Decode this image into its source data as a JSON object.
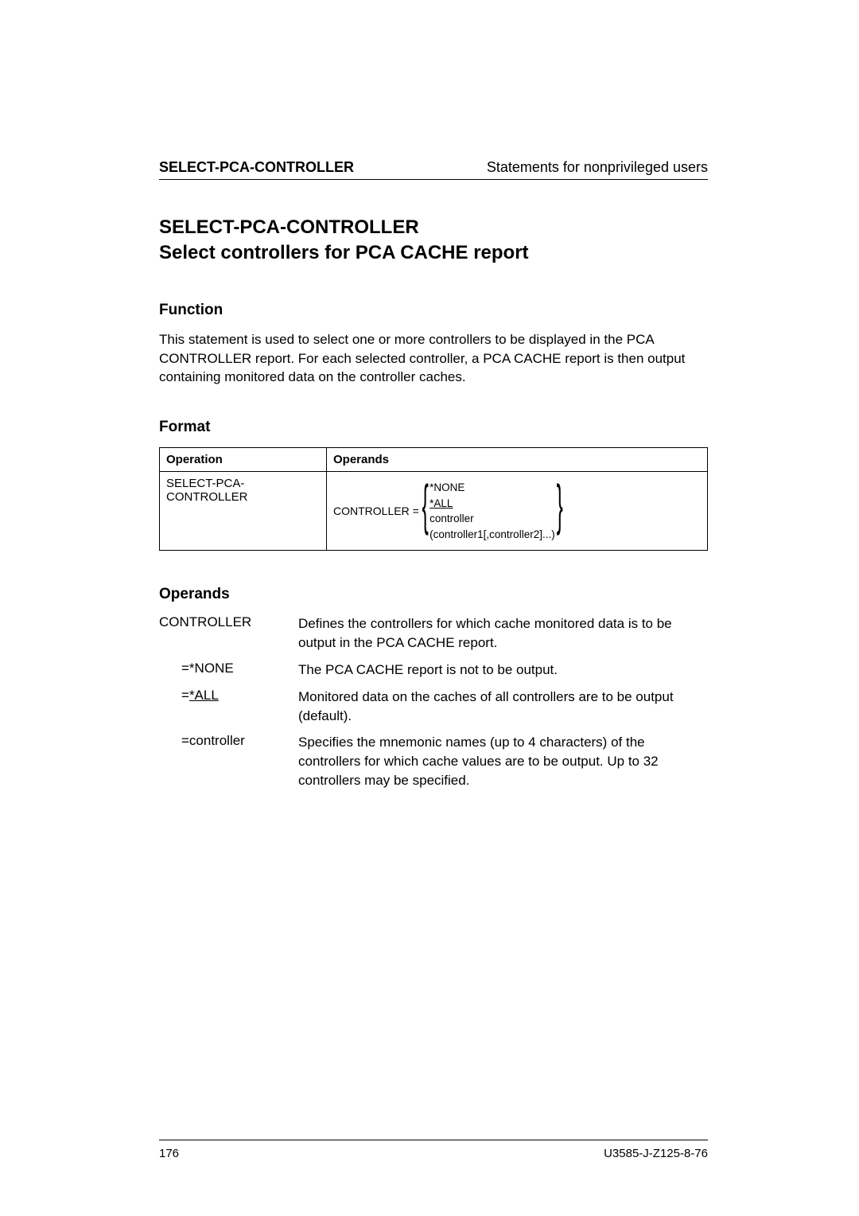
{
  "header": {
    "left": "SELECT-PCA-CONTROLLER",
    "right": "Statements for nonprivileged users"
  },
  "title": {
    "line1": "SELECT-PCA-CONTROLLER",
    "line2": "Select controllers for PCA CACHE report"
  },
  "function": {
    "heading": "Function",
    "text": "This statement is used to select one or more controllers to be displayed in the PCA CONTROLLER report. For each selected controller, a PCA CACHE report is then output containing monitored data on the controller caches."
  },
  "format": {
    "heading": "Format",
    "col1": "Operation",
    "col2": "Operands",
    "operation_line1": "SELECT-PCA-",
    "operation_line2": "CONTROLLER",
    "controller_label": "CONTROLLER =",
    "options": {
      "none": "*NONE",
      "all": "*ALL",
      "controller": "controller",
      "list": "(controller1[,controller2]...)"
    }
  },
  "operands": {
    "heading": "Operands",
    "items": [
      {
        "term": "CONTROLLER",
        "indent": false,
        "desc": "Defines the controllers for which cache monitored data is to be output in the PCA CACHE report."
      },
      {
        "term": "=*NONE",
        "indent": true,
        "desc": "The PCA CACHE report is not to be output."
      },
      {
        "term": "=*ALL",
        "indent": true,
        "underline": true,
        "desc": "Monitored data on the caches of all controllers are to be output (default)."
      },
      {
        "term": "=controller",
        "indent": true,
        "desc": "Specifies the mnemonic names (up to 4 characters) of the controllers for which cache values are to be output. Up to 32 controllers may be specified."
      }
    ]
  },
  "footer": {
    "page": "176",
    "docid": "U3585-J-Z125-8-76"
  }
}
